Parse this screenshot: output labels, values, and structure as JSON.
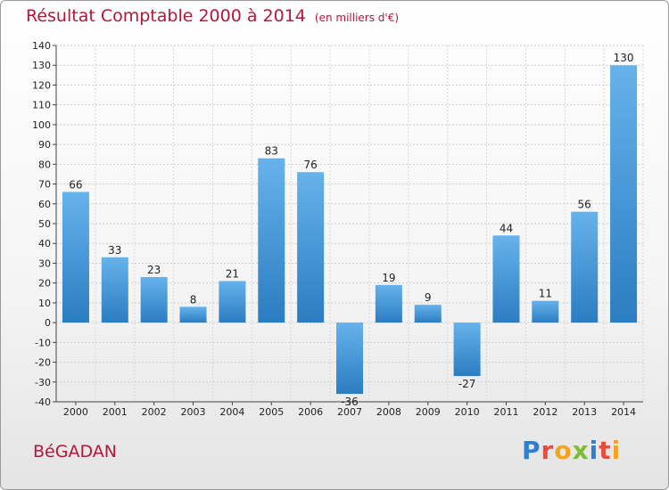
{
  "header": {
    "title": "Résultat Comptable 2000 à 2014",
    "subtitle": "(en milliers d'€)"
  },
  "footer": {
    "commune": "BéGADAN",
    "logo_text": "Proxiti"
  },
  "colors": {
    "title": "#b5163c",
    "bar_light": "#64b0ea",
    "bar_dark": "#2e80c3",
    "grid": "#cfcfcf"
  },
  "chart_data": {
    "type": "bar",
    "title": "Résultat Comptable 2000 à 2014",
    "xlabel": "",
    "ylabel": "",
    "ylim": [
      -40,
      140
    ],
    "yticks": [
      -40,
      -30,
      -20,
      -10,
      0,
      10,
      20,
      30,
      40,
      50,
      60,
      70,
      80,
      90,
      100,
      110,
      120,
      130,
      140
    ],
    "categories": [
      "2000",
      "2001",
      "2002",
      "2003",
      "2004",
      "2005",
      "2006",
      "2007",
      "2008",
      "2009",
      "2010",
      "2011",
      "2012",
      "2013",
      "2014"
    ],
    "values": [
      66,
      33,
      23,
      8,
      21,
      83,
      76,
      -36,
      19,
      9,
      -27,
      44,
      11,
      56,
      130
    ],
    "grid": true
  }
}
